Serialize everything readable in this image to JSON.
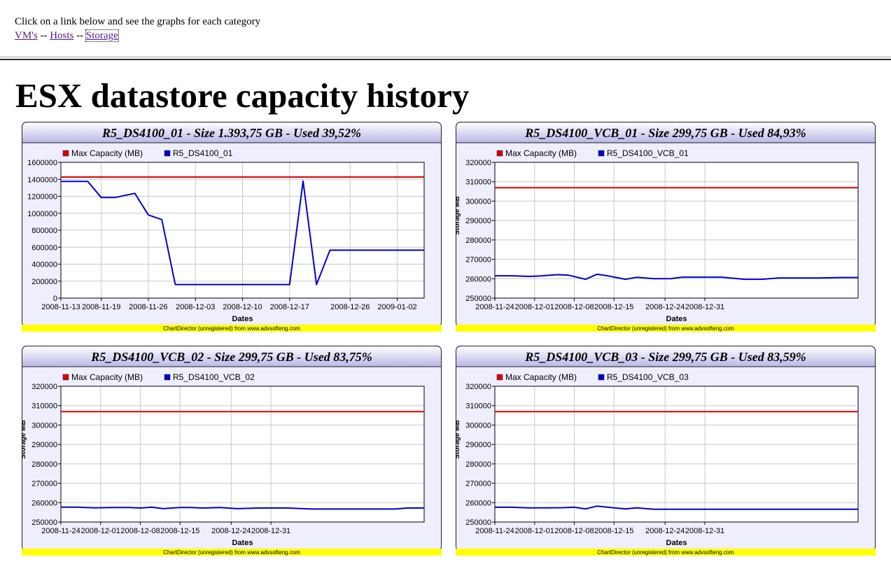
{
  "header": {
    "intro_text": "Click on a link below and see the graphs for each category",
    "separator": "--",
    "links": [
      {
        "label": "VM's"
      },
      {
        "label": "Hosts"
      },
      {
        "label": "Storage"
      }
    ]
  },
  "page_title": "ESX datastore capacity history",
  "colors": {
    "max_capacity": "#dd0000",
    "datastore_line": "#0000cc",
    "panel_header_top": "#ffffff",
    "panel_header_bottom": "#b8b8e8",
    "panel_body": "#eeeefc",
    "footer_bar": "#ffff00"
  },
  "footer_text": "ChartDirector (unregistered) from www.advsofteng.com",
  "chart_data": [
    {
      "type": "line",
      "title": "R5_DS4100_01 - Size 1.393,75 GB - Used 39,52%",
      "xlabel": "Dates",
      "ylabel": "",
      "ylim": [
        0,
        1600000
      ],
      "yticks": [
        0,
        200000,
        400000,
        600000,
        800000,
        1000000,
        1200000,
        1400000,
        1600000
      ],
      "xlim": [
        "2008-11-13",
        "2009-01-06"
      ],
      "xticks": [
        "2008-11-13",
        "2008-11-19",
        "2008-11-26",
        "2008-12-03",
        "2008-12-10",
        "2008-12-17",
        "2008-12-26",
        "2009-01-02"
      ],
      "grid": true,
      "legend": "top-left",
      "series": [
        {
          "name": "Max Capacity (MB)",
          "color": "#dd0000",
          "x": [
            "2008-11-13",
            "2009-01-06"
          ],
          "values": [
            1427200,
            1427200
          ]
        },
        {
          "name": "R5_DS4100_01",
          "color": "#0000cc",
          "x": [
            "2008-11-13",
            "2008-11-17",
            "2008-11-19",
            "2008-11-21",
            "2008-11-24",
            "2008-11-26",
            "2008-11-28",
            "2008-11-30",
            "2008-12-17",
            "2008-12-19",
            "2008-12-21",
            "2008-12-23",
            "2008-12-26",
            "2009-01-06"
          ],
          "values": [
            1375000,
            1375000,
            1185000,
            1185000,
            1235000,
            980000,
            925000,
            160000,
            160000,
            1380000,
            160000,
            565000,
            565000,
            565000
          ]
        }
      ]
    },
    {
      "type": "line",
      "title": "R5_DS4100_VCB_01 - Size 299,75 GB - Used 84,93%",
      "xlabel": "Dates",
      "ylabel": "Storage MB",
      "ylim": [
        250000,
        320000
      ],
      "yticks": [
        250000,
        260000,
        270000,
        280000,
        290000,
        300000,
        310000,
        320000
      ],
      "xlim": [
        "2008-11-24",
        "2009-01-27"
      ],
      "xticks": [
        "2008-11-24",
        "2008-12-01",
        "2008-12-08",
        "2008-12-15",
        "2008-12-24",
        "2008-12-31"
      ],
      "grid": true,
      "legend": "top-left",
      "series": [
        {
          "name": "Max Capacity (MB)",
          "color": "#dd0000",
          "x": [
            "2008-11-24",
            "2009-01-27"
          ],
          "values": [
            306900,
            306900
          ]
        },
        {
          "name": "R5_DS4100_VCB_01",
          "color": "#0000cc",
          "x": [
            "2008-11-24",
            "2008-11-27",
            "2008-11-30",
            "2008-12-02",
            "2008-12-05",
            "2008-12-07",
            "2008-12-10",
            "2008-12-12",
            "2008-12-14",
            "2008-12-17",
            "2008-12-19",
            "2008-12-22",
            "2008-12-25",
            "2008-12-27",
            "2008-12-31",
            "2009-01-03",
            "2009-01-07",
            "2009-01-10",
            "2009-01-13",
            "2009-01-16",
            "2009-01-20",
            "2009-01-24",
            "2009-01-27"
          ],
          "values": [
            261500,
            261500,
            261200,
            261400,
            262100,
            261800,
            259700,
            262300,
            261400,
            259700,
            260700,
            260000,
            260000,
            260800,
            260800,
            260800,
            259700,
            259700,
            260400,
            260400,
            260400,
            260600,
            260600
          ]
        }
      ]
    },
    {
      "type": "line",
      "title": "R5_DS4100_VCB_02 - Size 299,75 GB - Used 83,75%",
      "xlabel": "Dates",
      "ylabel": "Storage MB",
      "ylim": [
        250000,
        320000
      ],
      "yticks": [
        250000,
        260000,
        270000,
        280000,
        290000,
        300000,
        310000,
        320000
      ],
      "xlim": [
        "2008-11-24",
        "2009-01-27"
      ],
      "xticks": [
        "2008-11-24",
        "2008-12-01",
        "2008-12-08",
        "2008-12-15",
        "2008-12-24",
        "2008-12-31"
      ],
      "grid": true,
      "legend": "top-left",
      "series": [
        {
          "name": "Max Capacity (MB)",
          "color": "#dd0000",
          "x": [
            "2008-11-24",
            "2009-01-27"
          ],
          "values": [
            306900,
            306900
          ]
        },
        {
          "name": "R5_DS4100_VCB_02",
          "color": "#0000cc",
          "x": [
            "2008-11-24",
            "2008-11-27",
            "2008-11-30",
            "2008-12-03",
            "2008-12-06",
            "2008-12-08",
            "2008-12-10",
            "2008-12-12",
            "2008-12-15",
            "2008-12-17",
            "2008-12-19",
            "2008-12-22",
            "2008-12-25",
            "2008-12-29",
            "2009-01-03",
            "2009-01-07",
            "2009-01-12",
            "2009-01-17",
            "2009-01-22",
            "2009-01-24",
            "2009-01-27"
          ],
          "values": [
            257700,
            257700,
            257300,
            257500,
            257500,
            257200,
            257700,
            256900,
            257500,
            257500,
            257200,
            257500,
            256900,
            257200,
            257200,
            256700,
            256700,
            256700,
            256700,
            257200,
            257200
          ]
        }
      ]
    },
    {
      "type": "line",
      "title": "R5_DS4100_VCB_03 - Size 299,75 GB - Used 83,59%",
      "xlabel": "Dates",
      "ylabel": "Storage MB",
      "ylim": [
        250000,
        320000
      ],
      "yticks": [
        250000,
        260000,
        270000,
        280000,
        290000,
        300000,
        310000,
        320000
      ],
      "xlim": [
        "2008-11-24",
        "2009-01-27"
      ],
      "xticks": [
        "2008-11-24",
        "2008-12-01",
        "2008-12-08",
        "2008-12-15",
        "2008-12-24",
        "2008-12-31"
      ],
      "grid": true,
      "legend": "top-left",
      "series": [
        {
          "name": "Max Capacity (MB)",
          "color": "#dd0000",
          "x": [
            "2008-11-24",
            "2009-01-27"
          ],
          "values": [
            306900,
            306900
          ]
        },
        {
          "name": "R5_DS4100_VCB_03",
          "color": "#0000cc",
          "x": [
            "2008-11-24",
            "2008-11-27",
            "2008-11-30",
            "2008-12-03",
            "2008-12-06",
            "2008-12-08",
            "2008-12-10",
            "2008-12-12",
            "2008-12-15",
            "2008-12-17",
            "2008-12-19",
            "2008-12-22",
            "2008-12-25",
            "2008-12-29",
            "2009-01-03",
            "2009-01-10",
            "2009-01-17",
            "2009-01-24",
            "2009-01-27"
          ],
          "values": [
            257600,
            257600,
            257300,
            257300,
            257400,
            257600,
            256800,
            258200,
            257300,
            256800,
            257300,
            256600,
            256600,
            256600,
            256600,
            256600,
            256600,
            256600,
            256600
          ]
        }
      ]
    }
  ]
}
